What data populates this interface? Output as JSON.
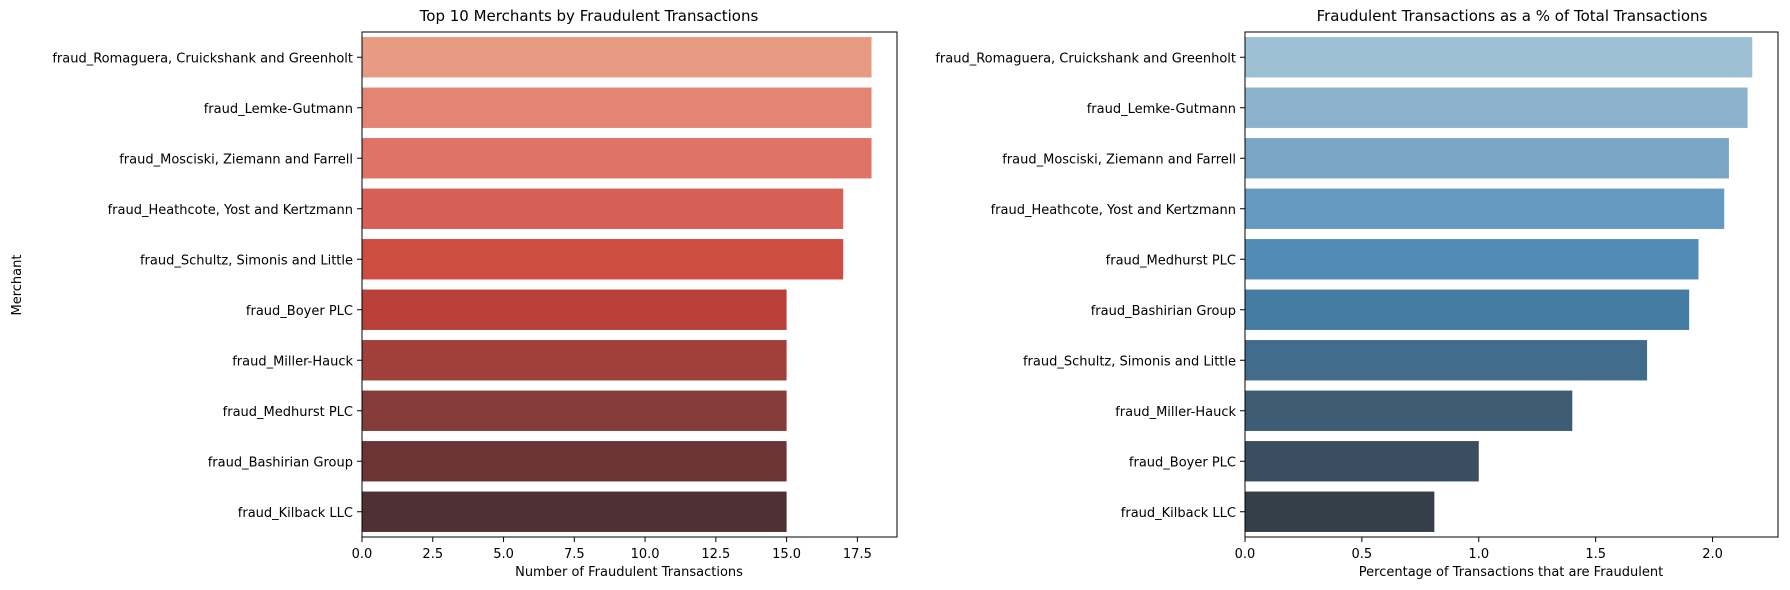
{
  "chart_data": [
    {
      "type": "bar",
      "orientation": "horizontal",
      "title": "Top 10 Merchants by Fraudulent Transactions",
      "xlabel": "Number of Fraudulent Transactions",
      "ylabel": "Merchant",
      "xlim": [
        0,
        18.9
      ],
      "xticks": [
        0,
        2.5,
        5,
        7.5,
        10,
        12.5,
        15,
        17.5
      ],
      "xtick_labels": [
        "0.0",
        "2.5",
        "5.0",
        "7.5",
        "10.0",
        "12.5",
        "15.0",
        "17.5"
      ],
      "grid": false,
      "categories": [
        "fraud_Romaguera, Cruickshank and Greenholt",
        "fraud_Lemke-Gutmann",
        "fraud_Mosciski, Ziemann and Farrell",
        "fraud_Heathcote, Yost and Kertzmann",
        "fraud_Schultz, Simonis and Little",
        "fraud_Boyer PLC",
        "fraud_Miller-Hauck",
        "fraud_Medhurst PLC",
        "fraud_Bashirian Group",
        "fraud_Kilback LLC"
      ],
      "values": [
        18,
        18,
        18,
        17,
        17,
        15,
        15,
        15,
        15,
        15
      ],
      "colors": [
        "#e99a83",
        "#e48574",
        "#df7365",
        "#d66055",
        "#cd4d43",
        "#b94038",
        "#a1403a",
        "#853b39",
        "#6b3535",
        "#4f3033"
      ]
    },
    {
      "type": "bar",
      "orientation": "horizontal",
      "title": "Fraudulent Transactions as a % of Total Transactions",
      "xlabel": "Percentage of Transactions that are Fraudulent",
      "ylabel": "",
      "xlim": [
        0,
        2.28
      ],
      "xticks": [
        0,
        0.5,
        1.0,
        1.5,
        2.0
      ],
      "xtick_labels": [
        "0.0",
        "0.5",
        "1.0",
        "1.5",
        "2.0"
      ],
      "grid": false,
      "categories": [
        "fraud_Romaguera, Cruickshank and Greenholt",
        "fraud_Lemke-Gutmann",
        "fraud_Mosciski, Ziemann and Farrell",
        "fraud_Heathcote, Yost and Kertzmann",
        "fraud_Medhurst PLC",
        "fraud_Bashirian Group",
        "fraud_Schultz, Simonis and Little",
        "fraud_Miller-Hauck",
        "fraud_Boyer PLC",
        "fraud_Kilback LLC"
      ],
      "values": [
        2.17,
        2.15,
        2.07,
        2.05,
        1.94,
        1.9,
        1.72,
        1.4,
        1.0,
        0.81
      ],
      "colors": [
        "#9dc0d5",
        "#8cb2cc",
        "#7aa6c6",
        "#669ac0",
        "#528cb6",
        "#457ca4",
        "#426c8c",
        "#3f5c75",
        "#3a4e61",
        "#343f49"
      ]
    }
  ]
}
